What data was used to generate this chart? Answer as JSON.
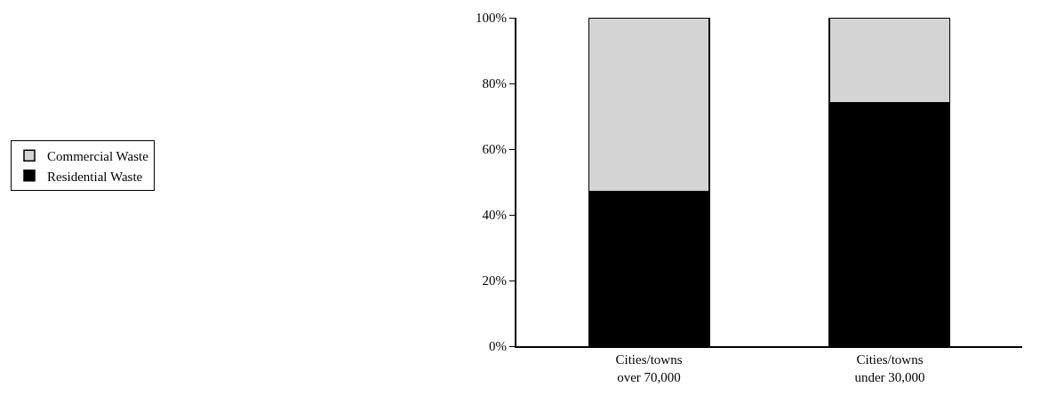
{
  "chart_data": {
    "type": "bar",
    "stacked": true,
    "categories": [
      "Cities/towns\nover 70,000",
      "Cities/towns\nunder 30,000"
    ],
    "series": [
      {
        "name": "Residential Waste",
        "color": "#000000",
        "values": [
          47,
          74
        ]
      },
      {
        "name": "Commercial Waste",
        "color": "#d4d4d4",
        "values": [
          53,
          26
        ]
      }
    ],
    "ylim": [
      0,
      100
    ],
    "yticks": [
      {
        "value": 0,
        "label": "0%"
      },
      {
        "value": 20,
        "label": "20%"
      },
      {
        "value": 40,
        "label": "40%"
      },
      {
        "value": 60,
        "label": "60%"
      },
      {
        "value": 80,
        "label": "80%"
      },
      {
        "value": 100,
        "label": "100%"
      }
    ],
    "grid": false,
    "legend": "left"
  }
}
